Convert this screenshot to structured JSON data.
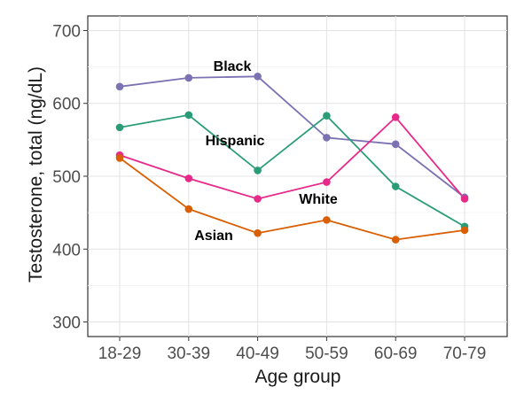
{
  "chart_data": {
    "type": "line",
    "xlabel": "Age group",
    "ylabel": "Testosterone, total (ng/dL)",
    "categories": [
      "18-29",
      "30-39",
      "40-49",
      "50-59",
      "60-69",
      "70-79"
    ],
    "ylim": [
      280,
      720
    ],
    "yticks": [
      300,
      400,
      500,
      600,
      700
    ],
    "grid": true,
    "series": [
      {
        "name": "Black",
        "color": "#7b72b4",
        "values": [
          623,
          635,
          637,
          553,
          544,
          471
        ]
      },
      {
        "name": "Hispanic",
        "color": "#2a9d78",
        "values": [
          567,
          584,
          508,
          583,
          486,
          431
        ]
      },
      {
        "name": "White",
        "color": "#e7298a",
        "values": [
          529,
          497,
          469,
          492,
          581,
          469
        ]
      },
      {
        "name": "Asian",
        "color": "#d95f02",
        "values": [
          525,
          455,
          422,
          440,
          413,
          426
        ]
      }
    ]
  }
}
